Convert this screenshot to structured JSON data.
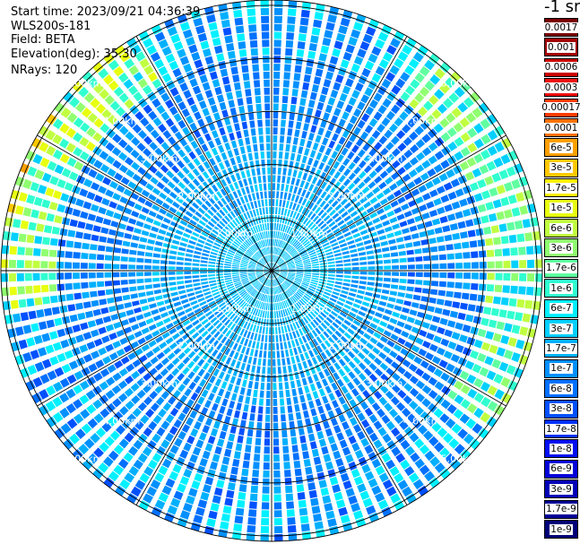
{
  "info": {
    "start_time": "Start time: 2023/09/21 04:36:39",
    "instrument": "WLS200s-181",
    "field": "Field: BETA",
    "elevation": "Elevation(deg): 35.30",
    "nrays": "NRays: 120"
  },
  "colorbar": {
    "unit": "-1 sr",
    "labels": [
      "0.0017",
      "0.001",
      "0.0006",
      "0.0003",
      "0.00017",
      "0.0001",
      "6e-5",
      "3e-5",
      "1.7e-5",
      "1e-5",
      "6e-6",
      "3e-6",
      "1.7e-6",
      "1e-6",
      "6e-7",
      "3e-7",
      "1.7e-7",
      "1e-7",
      "6e-8",
      "3e-8",
      "1.7e-8",
      "1e-8",
      "6e-9",
      "3e-9",
      "1.7e-9",
      "1e-9"
    ],
    "colors": [
      "#7a0000",
      "#a30000",
      "#cc0000",
      "#f01010",
      "#ff3a00",
      "#ff7000",
      "#ffa000",
      "#ffc800",
      "#fff000",
      "#e8ff10",
      "#c0ff40",
      "#90ff70",
      "#60ffa0",
      "#30ffd0",
      "#00f0ff",
      "#00d0ff",
      "#00b0ff",
      "#0090ff",
      "#0070ff",
      "#0050ff",
      "#0030ff",
      "#0010f0",
      "#0000d8",
      "#0000b8",
      "#000098",
      "#000078"
    ]
  },
  "chart_data": {
    "type": "polar-heatmap",
    "field": "BETA",
    "nrays": 120,
    "range_ring_labels": [
      "1.00km",
      "2.00km",
      "3.00km",
      "4.00km",
      "5.00km"
    ],
    "range_rings_km": [
      1,
      2,
      3,
      4,
      5
    ],
    "max_range_km": 5.1,
    "azimuth_spokes_deg": [
      0,
      30,
      60,
      90,
      120,
      150,
      180,
      210,
      240,
      270,
      300,
      330
    ],
    "grid": true,
    "colorbar_placement": "right",
    "description_values": "Backscatter mostly 1e-7 to 3e-7 (cyan/light blue) near center, 6e-8 to 1e-7 (blue) mid-range, enhanced 1e-6 to 3e-6 (green/yellow) band around 4.5-5 km toward west-northwest and east, up to 1e-5 (yellow/orange) at far west edge."
  }
}
